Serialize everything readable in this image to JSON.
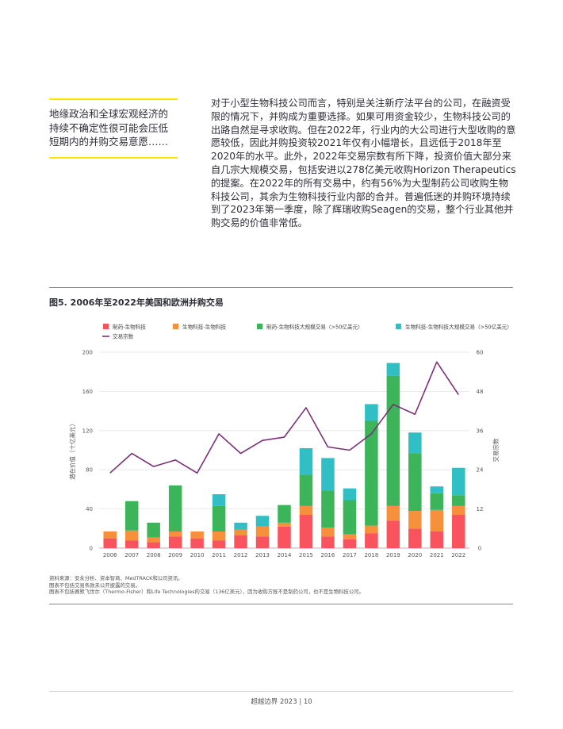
{
  "sidebar_quote": "地缘政治和全球宏观经济的持续不确定性很可能会压低短期内的并购交易意愿……",
  "body_paragraph": "对于小型生物科技公司而言，特别是关注新疗法平台的公司，在融资受限的情况下，并购成为重要选择。如果可用资金较少，生物科技公司的出路自然是寻求收购。但在2022年，行业内的大公司进行大型收购的意愿较低，因此并购投资较2021年仅有小幅增长，且远低于2018年至2020年的水平。此外，2022年交易宗数有所下降，投资价值大部分来自几宗大规模交易，包括安进以278亿美元收购Horizon Therapeutics的提案。在2022年的所有交易中，约有56%为大型制药公司收购生物科技公司，其余为生物科技行业内部的合并。普遍低迷的并购环境持续到了2023年第一季度，除了辉瑞收购Seagen的交易，整个行业其他并购交易的价值非常低。",
  "figure_title": "图5. 2006年至2022年美国和欧洲并购交易",
  "chart_data": {
    "type": "bar",
    "stacked": true,
    "categories": [
      "2006",
      "2007",
      "2008",
      "2009",
      "2010",
      "2011",
      "2012",
      "2013",
      "2014",
      "2015",
      "2016",
      "2017",
      "2018",
      "2019",
      "2020",
      "2021",
      "2022"
    ],
    "series": [
      {
        "name": "制药-生物科技",
        "color": "#f9545e",
        "values": [
          10,
          8,
          6,
          12,
          10,
          8,
          13,
          12,
          22,
          34,
          12,
          9,
          15,
          28,
          20,
          17,
          34
        ]
      },
      {
        "name": "生物科技-生物科技",
        "color": "#f7903a",
        "values": [
          7,
          10,
          5,
          5,
          7,
          9,
          6,
          10,
          4,
          9,
          9,
          5,
          8,
          15,
          18,
          22,
          9
        ]
      },
      {
        "name": "制药-生物科技大规模交易（>50亿美元）",
        "color": "#3cb45a",
        "values": [
          0,
          30,
          15,
          47,
          0,
          26,
          0,
          0,
          18,
          32,
          38,
          35,
          107,
          133,
          59,
          17,
          11
        ]
      },
      {
        "name": "生物科技-生物科技大规模交易（>50亿美元）",
        "color": "#2fbfc4",
        "values": [
          0,
          0,
          0,
          0,
          0,
          12,
          7,
          11,
          0,
          27,
          33,
          12,
          17,
          13,
          21,
          7,
          28
        ]
      }
    ],
    "line": {
      "name": "交易宗数",
      "color": "#7b2f7a",
      "values": [
        23,
        29,
        25,
        27,
        23,
        35,
        29,
        33,
        34,
        43,
        31,
        30,
        35,
        44,
        41,
        57,
        47
      ]
    },
    "ylabel": "潜在价值（十亿美元）",
    "y2label": "交易宗数",
    "ylim": [
      0,
      200
    ],
    "y2lim": [
      0,
      60
    ],
    "yticks": [
      "0",
      "40",
      "80",
      "120",
      "160",
      "200"
    ],
    "y2ticks": [
      "0",
      "12",
      "24",
      "36",
      "48",
      "60"
    ],
    "grid": true,
    "legend_position": "top-left"
  },
  "notes": [
    "资料来源：安永分析、资本智商、MedTRACK和公司资讯。",
    "图表不包括交易条款未公开披露的交易。",
    "图表不包括赛默飞世尔（Thermo-Fisher）和Life Technologies的交易（136亿美元），因为收购方既不是制药公司，也不是生物科技公司。"
  ],
  "footer": "超越边界 2023 | 10"
}
